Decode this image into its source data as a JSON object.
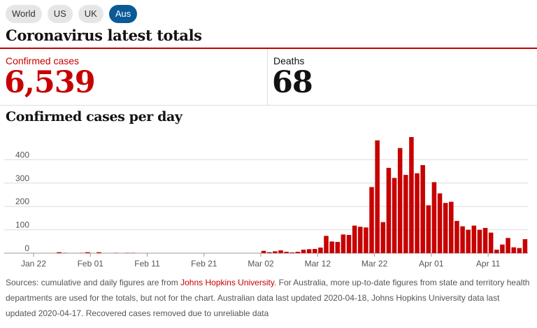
{
  "tabs": [
    {
      "label": "World",
      "active": false
    },
    {
      "label": "US",
      "active": false
    },
    {
      "label": "UK",
      "active": false
    },
    {
      "label": "Aus",
      "active": true
    }
  ],
  "headline": "Coronavirus latest totals",
  "stats": {
    "cases": {
      "label": "Confirmed cases",
      "value": "6,539"
    },
    "deaths": {
      "label": "Deaths",
      "value": "68"
    }
  },
  "colors": {
    "accent": "#c70000",
    "tab_active": "#0a5a96"
  },
  "chart_data": {
    "type": "bar",
    "title": "Confirmed cases per day",
    "xlabel": "",
    "ylabel": "",
    "ylim": [
      0,
      500
    ],
    "yticks": [
      0,
      100,
      200,
      300,
      400
    ],
    "grid": true,
    "x_tick_labels": [
      "Jan 22",
      "Feb 01",
      "Feb 11",
      "Feb 21",
      "Mar 02",
      "Mar 12",
      "Mar 22",
      "Apr 01",
      "Apr 11"
    ],
    "categories": [
      "Jan 22",
      "Jan 23",
      "Jan 24",
      "Jan 25",
      "Jan 26",
      "Jan 27",
      "Jan 28",
      "Jan 29",
      "Jan 30",
      "Jan 31",
      "Feb 01",
      "Feb 02",
      "Feb 03",
      "Feb 04",
      "Feb 05",
      "Feb 06",
      "Feb 07",
      "Feb 08",
      "Feb 09",
      "Feb 10",
      "Feb 11",
      "Feb 12",
      "Feb 13",
      "Feb 14",
      "Feb 15",
      "Feb 16",
      "Feb 17",
      "Feb 18",
      "Feb 19",
      "Feb 20",
      "Feb 21",
      "Feb 22",
      "Feb 23",
      "Feb 24",
      "Feb 25",
      "Feb 26",
      "Feb 27",
      "Feb 28",
      "Feb 29",
      "Mar 01",
      "Mar 02",
      "Mar 03",
      "Mar 04",
      "Mar 05",
      "Mar 06",
      "Mar 07",
      "Mar 08",
      "Mar 09",
      "Mar 10",
      "Mar 11",
      "Mar 12",
      "Mar 13",
      "Mar 14",
      "Mar 15",
      "Mar 16",
      "Mar 17",
      "Mar 18",
      "Mar 19",
      "Mar 20",
      "Mar 21",
      "Mar 22",
      "Mar 23",
      "Mar 24",
      "Mar 25",
      "Mar 26",
      "Mar 27",
      "Mar 28",
      "Mar 29",
      "Mar 30",
      "Mar 31",
      "Apr 01",
      "Apr 02",
      "Apr 03",
      "Apr 04",
      "Apr 05",
      "Apr 06",
      "Apr 07",
      "Apr 08",
      "Apr 09",
      "Apr 10",
      "Apr 11",
      "Apr 12",
      "Apr 13",
      "Apr 14",
      "Apr 15",
      "Apr 16",
      "Apr 17"
    ],
    "values": [
      0,
      0,
      0,
      0,
      4,
      1,
      0,
      0,
      1,
      4,
      0,
      4,
      0,
      0,
      1,
      0,
      1,
      1,
      0,
      0,
      0,
      0,
      0,
      0,
      0,
      0,
      0,
      0,
      0,
      0,
      0,
      0,
      0,
      0,
      0,
      0,
      0,
      0,
      0,
      0,
      10,
      4,
      8,
      12,
      6,
      3,
      6,
      15,
      17,
      18,
      24,
      74,
      50,
      48,
      80,
      78,
      118,
      113,
      110,
      283,
      483,
      133,
      365,
      322,
      450,
      335,
      497,
      342,
      377,
      205,
      304,
      256,
      215,
      220,
      138,
      115,
      100,
      118,
      100,
      108,
      88,
      15,
      37,
      65,
      25,
      22,
      60
    ]
  },
  "source": {
    "prefix": "Sources: cumulative and daily figures are from ",
    "link": "Johns Hopkins University",
    "suffix": ". For Australia, more up-to-date figures from state and territory health departments are used for the totals, but not for the chart. Australian data last updated 2020-04-18, Johns Hopkins University data last updated 2020-04-17. Recovered cases removed due to unreliable data"
  }
}
